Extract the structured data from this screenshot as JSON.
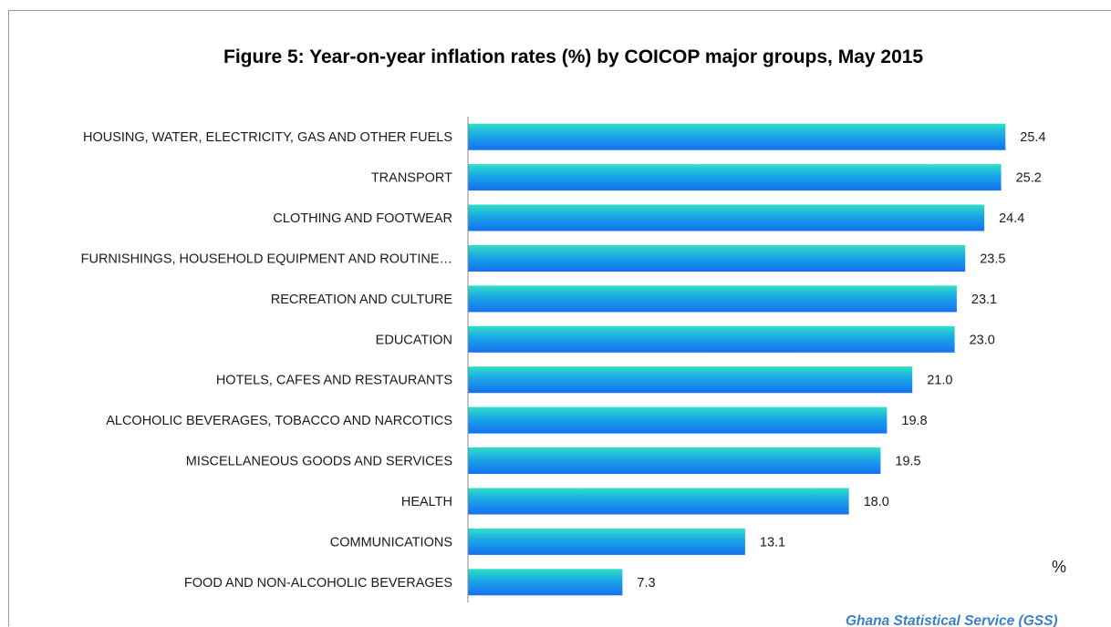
{
  "chart_data": {
    "type": "bar",
    "orientation": "horizontal",
    "title": "Figure 5: Year-on-year inflation rates (%) by  COICOP  major groups, May 2015",
    "categories": [
      "HOUSING, WATER, ELECTRICITY, GAS AND OTHER FUELS",
      "TRANSPORT",
      "CLOTHING AND FOOTWEAR",
      "FURNISHINGS, HOUSEHOLD EQUIPMENT AND ROUTINE…",
      "RECREATION AND CULTURE",
      "EDUCATION",
      "HOTELS, CAFES AND RESTAURANTS",
      "ALCOHOLIC BEVERAGES, TOBACCO AND NARCOTICS",
      "MISCELLANEOUS GOODS AND SERVICES",
      "HEALTH",
      "COMMUNICATIONS",
      "FOOD AND NON-ALCOHOLIC BEVERAGES"
    ],
    "values": [
      25.4,
      25.2,
      24.4,
      23.5,
      23.1,
      23.0,
      21.0,
      19.8,
      19.5,
      18.0,
      13.1,
      7.3
    ],
    "data_labels": [
      "25.4",
      "25.2",
      "24.4",
      "23.5",
      "23.1",
      "23.0",
      "21.0",
      "19.8",
      "19.5",
      "18.0",
      "13.1",
      "7.3"
    ],
    "unit_label": "%",
    "xlim": [
      0,
      30
    ],
    "grid": false,
    "legend": "none"
  },
  "source": "Ghana Statistical Service (GSS)",
  "colors": {
    "bar_top": "#2fe0c6",
    "bar_mid": "#1aa6e6",
    "bar_bottom": "#1470f0",
    "axis": "#8a8a8a",
    "source_text": "#3a80c8"
  }
}
